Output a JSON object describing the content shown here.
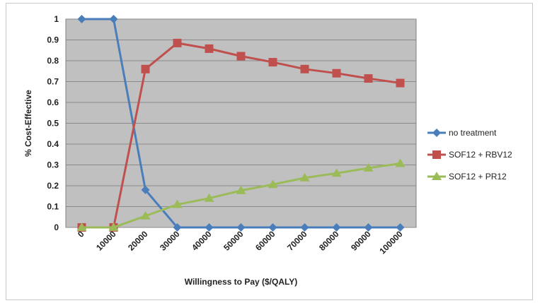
{
  "chart_data": {
    "type": "line",
    "title": "",
    "xlabel": "Willingness to Pay ($/QALY)",
    "ylabel": "% Cost-Effective",
    "categories": [
      "0",
      "10000",
      "20000",
      "30000",
      "40000",
      "50000",
      "60000",
      "70000",
      "80000",
      "90000",
      "100000"
    ],
    "ylim": [
      0,
      1
    ],
    "yticks": [
      "0",
      "0.1",
      "0.2",
      "0.3",
      "0.4",
      "0.5",
      "0.6",
      "0.7",
      "0.8",
      "0.9",
      "1"
    ],
    "grid": true,
    "legend_position": "right",
    "plot_background": "#c0c0c0",
    "series": [
      {
        "name": "no treatment",
        "color": "#4a7ebb",
        "marker": "diamond",
        "values": [
          1,
          1,
          0.18,
          0,
          0,
          0,
          0,
          0,
          0,
          0,
          0
        ]
      },
      {
        "name": "SOF12 + RBV12",
        "color": "#c0504d",
        "marker": "square",
        "values": [
          0,
          0,
          0.76,
          0.885,
          0.858,
          0.822,
          0.793,
          0.76,
          0.74,
          0.715,
          0.693
        ]
      },
      {
        "name": "SOF12 + PR12",
        "color": "#9bbb59",
        "marker": "triangle",
        "values": [
          0,
          0,
          0.055,
          0.11,
          0.14,
          0.177,
          0.206,
          0.238,
          0.26,
          0.285,
          0.307
        ]
      }
    ]
  }
}
